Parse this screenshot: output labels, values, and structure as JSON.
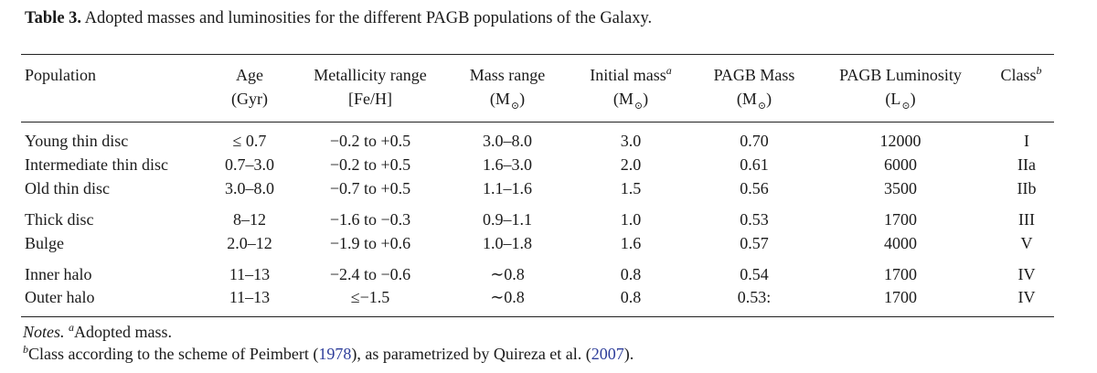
{
  "caption": {
    "label": "Table 3.",
    "text": "Adopted masses and luminosities for the different PAGB populations of the Galaxy."
  },
  "header": {
    "population": "Population",
    "age": "Age",
    "age_unit": "(Gyr)",
    "metallicity": "Metallicity range",
    "metallicity_unit": "[Fe/H]",
    "mass_range": "Mass range",
    "mass_range_unit_open": "(M",
    "initial_mass": "Initial mass",
    "initial_mass_sup": "a",
    "initial_mass_unit_open": "(M",
    "pagb_mass": "PAGB Mass",
    "pagb_mass_unit_open": "(M",
    "pagb_lum": "PAGB Luminosity",
    "pagb_lum_unit_open": "(L",
    "unit_close": ")",
    "sun_symbol": "⊙",
    "class": "Class",
    "class_sup": "b"
  },
  "rows": [
    {
      "population": "Young thin disc",
      "age": "≤ 0.7",
      "metallicity": "−0.2 to +0.5",
      "mass_range": "3.0–8.0",
      "initial_mass": "3.0",
      "pagb_mass": "0.70",
      "pagb_lum": "12000",
      "class": "I"
    },
    {
      "population": "Intermediate thin disc",
      "age": "0.7–3.0",
      "metallicity": "−0.2 to +0.5",
      "mass_range": "1.6–3.0",
      "initial_mass": "2.0",
      "pagb_mass": "0.61",
      "pagb_lum": "6000",
      "class": "IIa"
    },
    {
      "population": "Old thin disc",
      "age": "3.0–8.0",
      "metallicity": "−0.7 to +0.5",
      "mass_range": "1.1–1.6",
      "initial_mass": "1.5",
      "pagb_mass": "0.56",
      "pagb_lum": "3500",
      "class": "IIb"
    },
    {
      "population": "Thick disc",
      "age": "8–12",
      "metallicity": "−1.6 to −0.3",
      "mass_range": "0.9–1.1",
      "initial_mass": "1.0",
      "pagb_mass": "0.53",
      "pagb_lum": "1700",
      "class": "III"
    },
    {
      "population": "Bulge",
      "age": "2.0–12",
      "metallicity": "−1.9 to +0.6",
      "mass_range": "1.0–1.8",
      "initial_mass": "1.6",
      "pagb_mass": "0.57",
      "pagb_lum": "4000",
      "class": "V"
    },
    {
      "population": "Inner halo",
      "age": "11–13",
      "metallicity": "−2.4 to −0.6",
      "mass_range": "∼0.8",
      "initial_mass": "0.8",
      "pagb_mass": "0.54",
      "pagb_lum": "1700",
      "class": "IV"
    },
    {
      "population": "Outer halo",
      "age": "11–13",
      "metallicity": "≤−1.5",
      "mass_range": "∼0.8",
      "initial_mass": "0.8",
      "pagb_mass": "0.53:",
      "pagb_lum": "1700",
      "class": "IV"
    }
  ],
  "notes": {
    "label": "Notes.",
    "a_mark": "a",
    "a_text": "Adopted mass.",
    "b_mark": "b",
    "b_text_1": "Class according to the scheme of Peimbert (",
    "b_ref_1": "1978",
    "b_text_2": "), as parametrized by Quireza et al. (",
    "b_ref_2": "2007",
    "b_text_3": ")."
  }
}
